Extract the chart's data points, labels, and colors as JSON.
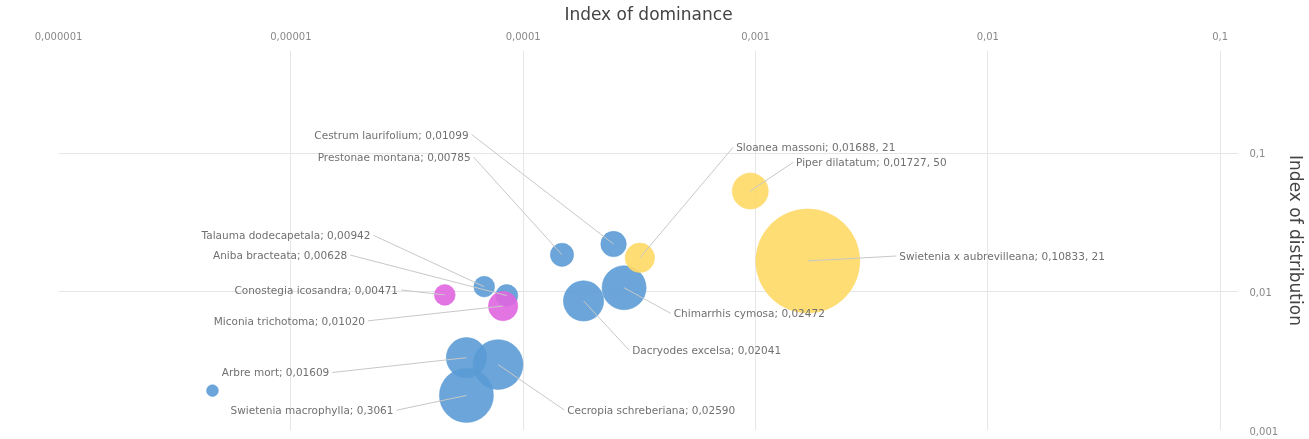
{
  "chart_data": {
    "type": "bubble",
    "xlabel": "Index of dominance",
    "ylabel": "Index of distribution",
    "log": "xy",
    "grid": true,
    "marker": "circle",
    "xlim": [
      1e-06,
      0.12
    ],
    "ylim": [
      0.001,
      0.55
    ],
    "xticks": [
      {
        "value": 1e-06,
        "label": "0,000001"
      },
      {
        "value": 1e-05,
        "label": "0,00001"
      },
      {
        "value": 0.0001,
        "label": "0,0001"
      },
      {
        "value": 0.001,
        "label": "0,001"
      },
      {
        "value": 0.01,
        "label": "0,01"
      },
      {
        "value": 0.1,
        "label": "0,1"
      }
    ],
    "yticks": [
      {
        "value": 0.001,
        "label": "0,001"
      },
      {
        "value": 0.01,
        "label": "0,01"
      },
      {
        "value": 0.1,
        "label": "0,1"
      }
    ],
    "series": [
      {
        "color": "#5b9bd5",
        "x": [
          0.000245,
          0.000147,
          0.000272,
          0.000182,
          6.8e-05,
          8.5e-05,
          5.7e-05,
          7.8e-05,
          5.7e-05,
          4.6e-06
        ],
        "values": [
          0.0221,
          0.0185,
          0.0107,
          0.0086,
          0.0109,
          0.0094,
          0.00335,
          0.00299,
          0.00179,
          0.00194
        ],
        "sizes": [
          0.06,
          0.05,
          0.18,
          0.15,
          0.04,
          0.045,
          0.15,
          0.23,
          0.27,
          0.013
        ]
      },
      {
        "color": "#e066e0",
        "x": [
          4.6e-05,
          8.2e-05
        ],
        "values": [
          0.0095,
          0.0079
        ],
        "sizes": [
          0.04,
          0.08
        ]
      },
      {
        "color": "#ffd966",
        "x": [
          0.000318,
          0.00095,
          0.00168
        ],
        "values": [
          0.0176,
          0.0533,
          0.0167
        ],
        "sizes": [
          0.08,
          0.12,
          1
        ]
      }
    ],
    "annotations": [
      {
        "text": "Cestrum laurifolium; 0,01099",
        "x": 0.000245,
        "y": 0.0221
      },
      {
        "text": "Prestonae montana; 0,00785",
        "x": 0.000147,
        "y": 0.0185
      },
      {
        "text": "Sloanea massoni; 0,01688, 21",
        "x": 0.000318,
        "y": 0.0176
      },
      {
        "text": "Piper dilatatum; 0,01727, 50",
        "x": 0.00095,
        "y": 0.0533
      },
      {
        "text": "Swietenia x aubrevilleana; 0,10833, 21",
        "x": 0.00168,
        "y": 0.0167
      },
      {
        "text": "Chimarrhis cymosa; 0,02472",
        "x": 0.000272,
        "y": 0.0107
      },
      {
        "text": "Dacryodes excelsa; 0,02041",
        "x": 0.000182,
        "y": 0.0086
      },
      {
        "text": "Talauma dodecapetala; 0,00942",
        "x": 6.8e-05,
        "y": 0.0109
      },
      {
        "text": "Aniba bracteata; 0,00628",
        "x": 8.5e-05,
        "y": 0.0094
      },
      {
        "text": "Conostegia icosandra; 0,00471",
        "x": 4.6e-05,
        "y": 0.0095
      },
      {
        "text": "Miconia trichotoma; 0,01020",
        "x": 8.2e-05,
        "y": 0.0079
      },
      {
        "text": "Arbre mort; 0,01609",
        "x": 5.7e-05,
        "y": 0.00335
      },
      {
        "text": "Cecropia schreberiana; 0,02590",
        "x": 7.8e-05,
        "y": 0.00299
      },
      {
        "text": "Swietenia macrophylla; 0,3061",
        "x": 5.7e-05,
        "y": 0.00179
      }
    ]
  }
}
